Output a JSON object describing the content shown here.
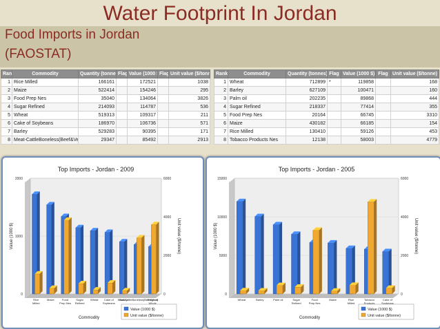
{
  "slide": {
    "title": "Water Footprint In Jordan",
    "subtitle_line1": "Food Imports in Jordan",
    "subtitle_line2": "(FAOSTAT)"
  },
  "tables": [
    {
      "headers": [
        "Rank",
        "Commodity",
        "Quantity (tonnes)",
        "Flag",
        "Value (1000 $)",
        "Flag",
        "Unit value ($/tonne)"
      ],
      "rows": [
        [
          "1",
          "Rice Milled",
          "166161",
          "",
          "172521",
          "",
          "1038"
        ],
        [
          "2",
          "Maize",
          "522414",
          "",
          "154246",
          "",
          "295"
        ],
        [
          "3",
          "Food Prep Nes",
          "35040",
          "",
          "134064",
          "",
          "3826"
        ],
        [
          "4",
          "Sugar Refined",
          "214093",
          "",
          "114787",
          "",
          "536"
        ],
        [
          "5",
          "Wheat",
          "519313",
          "",
          "109317",
          "",
          "211"
        ],
        [
          "6",
          "Cake of Soybeans",
          "186970",
          "",
          "106736",
          "",
          "571"
        ],
        [
          "7",
          "Barley",
          "529283",
          "",
          "90395",
          "",
          "171"
        ],
        [
          "8",
          "Meat-CattleBoneless(Beef&Veal)",
          "29347",
          "",
          "85492",
          "",
          "2913"
        ]
      ]
    },
    {
      "headers": [
        "Rank",
        "Commodity",
        "Quantity (tonnes)",
        "Flag",
        "Value (1000 $)",
        "Flag",
        "Unit value ($/tonne)"
      ],
      "rows": [
        [
          "1",
          "Wheat",
          "712899",
          "*",
          "119858",
          "",
          "168"
        ],
        [
          "2",
          "Barley",
          "627109",
          "",
          "100471",
          "",
          "160"
        ],
        [
          "3",
          "Palm oil",
          "202235",
          "",
          "89868",
          "",
          "444"
        ],
        [
          "4",
          "Sugar Refined",
          "218337",
          "",
          "77414",
          "",
          "355"
        ],
        [
          "5",
          "Food Prep Nes",
          "20164",
          "",
          "66745",
          "",
          "3310"
        ],
        [
          "6",
          "Maize",
          "430182",
          "",
          "66185",
          "",
          "154"
        ],
        [
          "7",
          "Rice Milled",
          "130410",
          "",
          "59126",
          "",
          "453"
        ],
        [
          "8",
          "Tobacco Products Nes",
          "12138",
          "",
          "58003",
          "",
          "4779"
        ]
      ]
    }
  ],
  "chart_data": [
    {
      "type": "bar",
      "title": "Top Imports - Jordan - 2009",
      "xlabel": "Commodity",
      "ylabel": "Value (1000 $)",
      "y2label": "Unit value ($/tonne)",
      "categories": [
        "Rice Milled",
        "Maize",
        "Food Prep Nes",
        "Sugar Refined",
        "Wheat",
        "Cake of Soybeans",
        "Barley",
        "Meat-CattleBoneless(Beef&Veal)",
        "Dregs of Whole Cow Milk"
      ],
      "series": [
        {
          "name": "Value (1000 $)",
          "axis": "left",
          "color": "#3a73d6",
          "values": [
            172521,
            154246,
            134064,
            114787,
            109317,
            106736,
            90395,
            85492,
            82000
          ]
        },
        {
          "name": "Unit value ($/tonne)",
          "axis": "right",
          "color": "#f0a830",
          "values": [
            1038,
            295,
            3826,
            536,
            211,
            571,
            171,
            2913,
            3600
          ]
        }
      ],
      "ylim": [
        0,
        200000
      ],
      "y2lim": [
        0,
        6000
      ],
      "yticks": [
        "0",
        "1000",
        "2000"
      ],
      "y2ticks": [
        "0",
        "2000",
        "4000",
        "6000"
      ],
      "legend": "bottom-right"
    },
    {
      "type": "bar",
      "title": "Top Imports - Jordan - 2005",
      "xlabel": "Commodity",
      "ylabel": "Value (1000 $)",
      "y2label": "Unit value ($/tonne)",
      "categories": [
        "Wheat",
        "Barley",
        "Palm oil",
        "Sugar Refined",
        "Food Prep Nes",
        "Maize",
        "Rice Milled",
        "Tobacco Products Nes",
        "Cake of Soybeans"
      ],
      "series": [
        {
          "name": "Value (1000 $)",
          "axis": "left",
          "color": "#3a73d6",
          "values": [
            119858,
            100471,
            89868,
            77414,
            66745,
            66185,
            59126,
            58003,
            55000
          ]
        },
        {
          "name": "Unit value ($/tonne)",
          "axis": "right",
          "color": "#f0a830",
          "values": [
            168,
            160,
            444,
            355,
            3310,
            154,
            453,
            4779,
            300
          ]
        }
      ],
      "ylim": [
        0,
        150000
      ],
      "y2lim": [
        0,
        6000
      ],
      "yticks": [
        "0",
        "5000",
        "10000",
        "15000"
      ],
      "y2ticks": [
        "0",
        "2000",
        "4000",
        "6000"
      ],
      "legend": "bottom-right"
    }
  ]
}
